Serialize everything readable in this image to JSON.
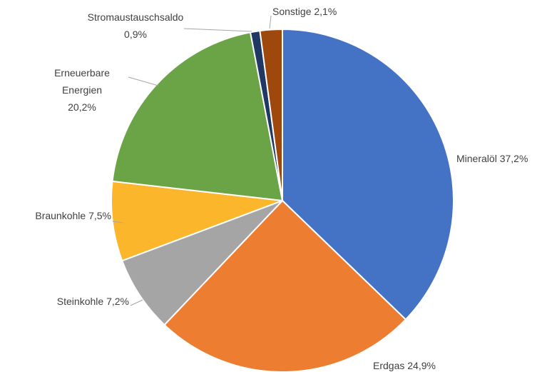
{
  "chart_data": {
    "type": "pie",
    "categories": [
      "Mineralöl",
      "Erdgas",
      "Steinkohle",
      "Braunkohle",
      "Erneuerbare Energien",
      "Stromaustauschsaldo",
      "Sonstige"
    ],
    "values": [
      37.2,
      24.9,
      7.2,
      7.5,
      20.2,
      0.9,
      2.1
    ],
    "value_labels": [
      "37,2%",
      "24,9%",
      "7,2%",
      "7,5%",
      "20,2%",
      "0,9%",
      "2,1%"
    ],
    "colors": [
      "#4472c4",
      "#ed7d31",
      "#a5a5a5",
      "#fbb62c",
      "#6aa446",
      "#1f3864",
      "#9e480e"
    ]
  }
}
